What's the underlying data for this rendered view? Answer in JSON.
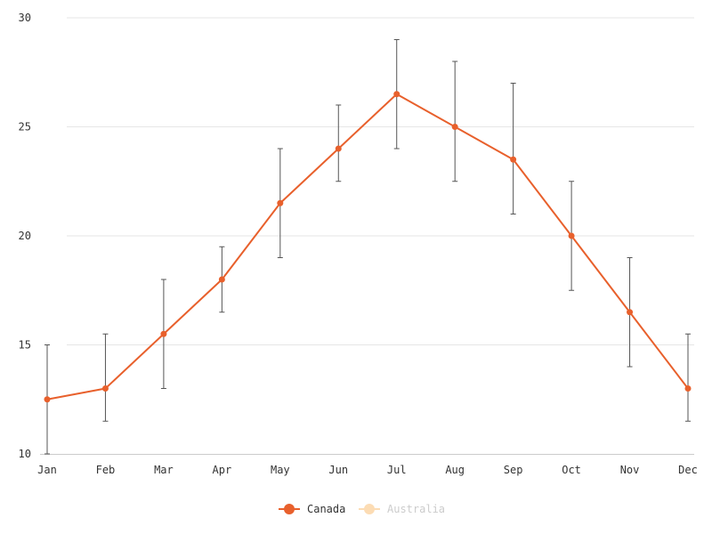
{
  "chart_data": {
    "type": "line",
    "categories": [
      "Jan",
      "Feb",
      "Mar",
      "Apr",
      "May",
      "Jun",
      "Jul",
      "Aug",
      "Sep",
      "Oct",
      "Nov",
      "Dec"
    ],
    "series": [
      {
        "name": "Canada",
        "color": "#e8602c",
        "visible": true,
        "values": [
          12.5,
          13,
          15.5,
          18,
          21.5,
          24,
          26.5,
          25,
          23.5,
          20,
          16.5,
          13
        ],
        "error_low": [
          10,
          11.5,
          13,
          16.5,
          19,
          22.5,
          24,
          22.5,
          21,
          17.5,
          14,
          11.5
        ],
        "error_high": [
          15,
          15.5,
          18,
          19.5,
          24,
          26,
          29,
          28,
          27,
          22.5,
          19,
          15.5
        ]
      },
      {
        "name": "Australia",
        "color": "#fcdcb4",
        "visible": false
      }
    ],
    "ylim": [
      10,
      30
    ],
    "yticks": [
      10,
      15,
      20,
      25,
      30
    ],
    "grid": true,
    "legend": "bottom-center",
    "error_bar_color": "#555555"
  }
}
